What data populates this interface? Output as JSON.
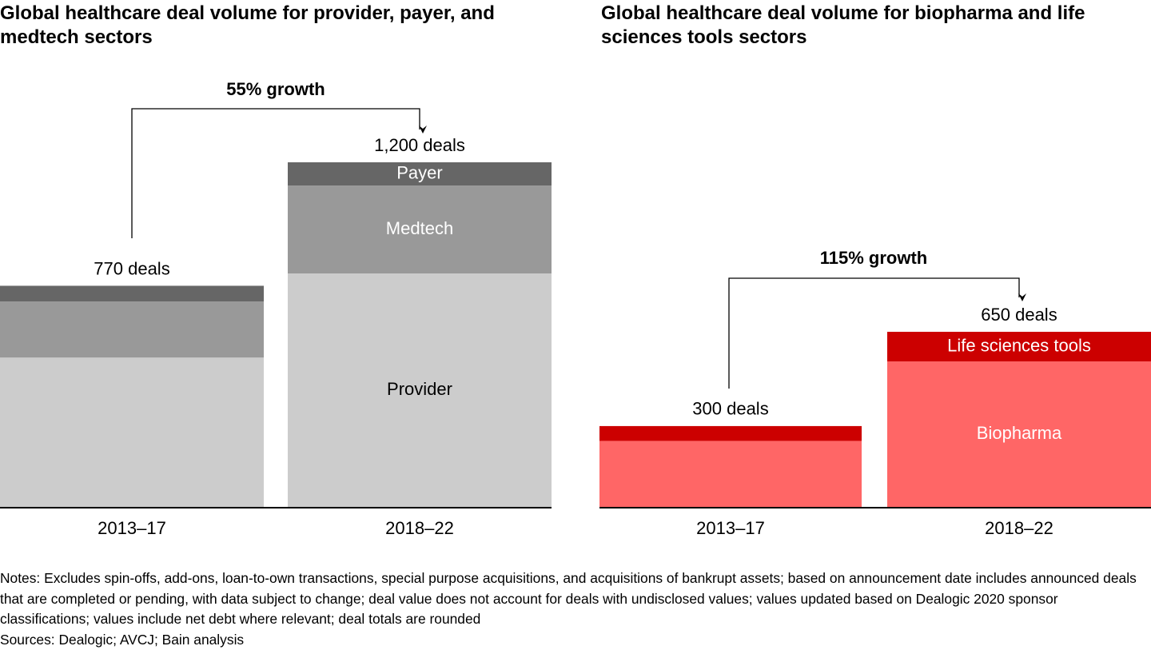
{
  "chart_data": [
    {
      "type": "bar",
      "stacked": true,
      "title": "Global healthcare deal volume for provider, payer, and medtech sectors",
      "categories": [
        "2013–17",
        "2018–22"
      ],
      "series": [
        {
          "name": "Provider",
          "color": "#cccccc",
          "label_color": "#000000",
          "values": [
            520,
            813
          ]
        },
        {
          "name": "Medtech",
          "color": "#999999",
          "label_color": "#ffffff",
          "values": [
            195,
            306
          ]
        },
        {
          "name": "Payer",
          "color": "#666666",
          "label_color": "#ffffff",
          "values": [
            55,
            81
          ]
        }
      ],
      "total_labels": [
        "770 deals",
        "1,200 deals"
      ],
      "annotation": "55% growth"
    },
    {
      "type": "bar",
      "stacked": true,
      "title": "Global healthcare deal volume for biopharma and life sciences tools sectors",
      "categories": [
        "2013–17",
        "2018–22"
      ],
      "series": [
        {
          "name": "Biopharma",
          "color": "#ff6666",
          "label_color": "#ffffff",
          "values": [
            245,
            540
          ]
        },
        {
          "name": "Life sciences tools",
          "color": "#cc0000",
          "label_color": "#ffffff",
          "values": [
            55,
            110
          ]
        }
      ],
      "total_labels": [
        "300 deals",
        "650 deals"
      ],
      "annotation": "115% growth"
    }
  ],
  "notes": "Notes: Excludes spin-offs, add-ons, loan-to-own transactions, special purpose acquisitions, and acquisitions of bankrupt assets; based on announcement date includes announced deals that are completed or pending, with data subject to change; deal value does not account for deals with undisclosed values; values updated based on Dealogic 2020 sponsor classifications; values include net debt where relevant; deal totals are rounded",
  "sources": "Sources: Dealogic; AVCJ; Bain analysis"
}
